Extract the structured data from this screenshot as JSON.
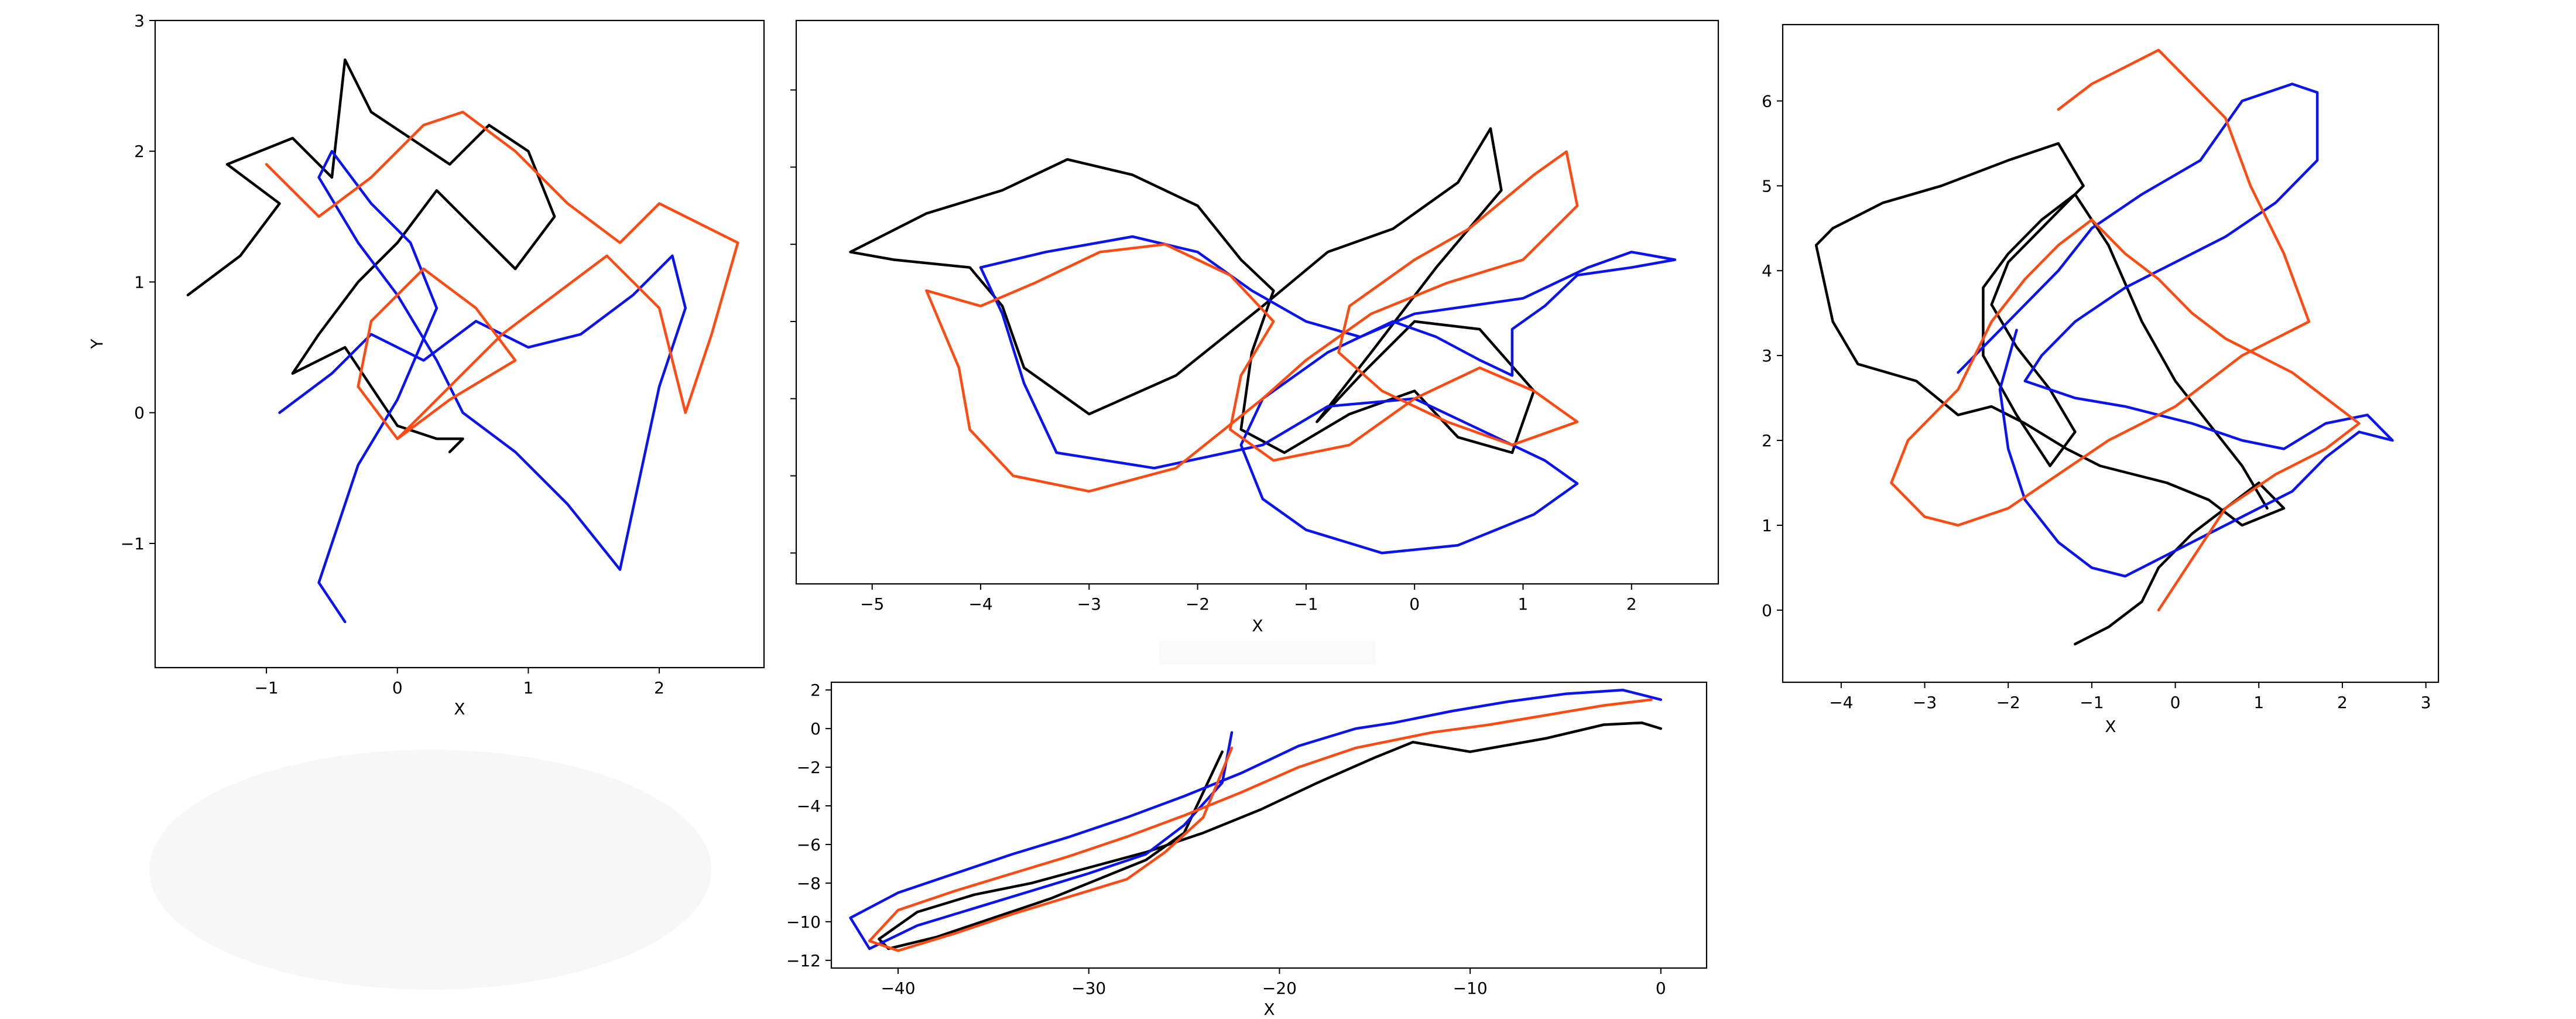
{
  "colors": {
    "black": "#000000",
    "blue": "#0a14f0",
    "orange": "#ff4b12"
  },
  "chart_data": [
    {
      "type": "line",
      "xlabel": "X",
      "ylabel": "Y",
      "xlim": [
        -1.85,
        2.8
      ],
      "ylim": [
        -1.95,
        3.0
      ],
      "xticks": [
        -1,
        0,
        1,
        2
      ],
      "yticks": [
        -1,
        0,
        1,
        2,
        3
      ],
      "series": [
        {
          "color": "#000000",
          "x": [
            -1.6,
            -1.2,
            -0.9,
            -1.3,
            -0.8,
            -0.5,
            -0.4,
            -0.2,
            0.1,
            0.4,
            0.7,
            1.0,
            1.2,
            0.9,
            0.6,
            0.3,
            0.0,
            -0.3,
            -0.6,
            -0.8,
            -0.4,
            -0.2,
            0.0,
            0.3,
            0.5,
            0.4
          ],
          "y": [
            0.9,
            1.2,
            1.6,
            1.9,
            2.1,
            1.8,
            2.7,
            2.3,
            2.1,
            1.9,
            2.2,
            2.0,
            1.5,
            1.1,
            1.4,
            1.7,
            1.3,
            1.0,
            0.6,
            0.3,
            0.5,
            0.2,
            -0.1,
            -0.2,
            -0.2,
            -0.3
          ]
        },
        {
          "color": "#0a14f0",
          "x": [
            -0.9,
            -0.5,
            -0.2,
            0.2,
            0.6,
            1.0,
            1.4,
            1.8,
            2.1,
            2.2,
            2.0,
            1.7,
            1.3,
            0.9,
            0.5,
            0.3,
            0.0,
            -0.3,
            -0.6,
            -0.5,
            -0.2,
            0.1,
            0.3,
            0.0,
            -0.3,
            -0.6,
            -0.4
          ],
          "y": [
            0.0,
            0.3,
            0.6,
            0.4,
            0.7,
            0.5,
            0.6,
            0.9,
            1.2,
            0.8,
            0.2,
            -1.2,
            -0.7,
            -0.3,
            0.0,
            0.4,
            0.9,
            1.3,
            1.8,
            2.0,
            1.6,
            1.3,
            0.8,
            0.1,
            -0.4,
            -1.3,
            -1.6
          ]
        },
        {
          "color": "#ff4b12",
          "x": [
            -1.0,
            -0.6,
            -0.2,
            0.2,
            0.5,
            0.9,
            1.3,
            1.7,
            2.0,
            2.6,
            2.4,
            2.2,
            2.0,
            1.6,
            1.2,
            0.8,
            0.5,
            0.3,
            0.0,
            -0.3,
            -0.2,
            0.2,
            0.6,
            0.9,
            0.4,
            0.0
          ],
          "y": [
            1.9,
            1.5,
            1.8,
            2.2,
            2.3,
            2.0,
            1.6,
            1.3,
            1.6,
            1.3,
            0.6,
            0.0,
            0.8,
            1.2,
            0.9,
            0.6,
            0.3,
            0.1,
            -0.2,
            0.2,
            0.7,
            1.1,
            0.8,
            0.4,
            0.1,
            -0.2
          ]
        }
      ]
    },
    {
      "type": "line",
      "xlabel": "X",
      "xlim": [
        -5.7,
        2.8
      ],
      "ylim": [
        -2.2,
        1.45
      ],
      "xticks": [
        -5,
        -4,
        -3,
        -2,
        -1,
        0,
        1,
        2
      ],
      "series": [
        {
          "color": "#000000",
          "x": [
            -5.2,
            -4.5,
            -3.8,
            -3.2,
            -2.6,
            -2.0,
            -1.6,
            -1.3,
            -1.5,
            -1.6,
            -1.2,
            -0.6,
            0.0,
            0.4,
            0.9,
            1.1,
            0.6,
            0.0,
            -0.5,
            -0.9,
            -0.4,
            0.2,
            0.8,
            0.7,
            0.4,
            -0.2,
            -0.8,
            -1.4,
            -2.2,
            -3.0,
            -3.6,
            -3.8,
            -4.1,
            -4.8,
            -5.2
          ],
          "y": [
            -0.05,
            0.2,
            0.35,
            0.55,
            0.45,
            0.25,
            -0.1,
            -0.3,
            -0.7,
            -1.2,
            -1.35,
            -1.1,
            -0.95,
            -1.25,
            -1.35,
            -0.95,
            -0.55,
            -0.5,
            -0.85,
            -1.15,
            -0.7,
            -0.15,
            0.35,
            0.75,
            0.4,
            0.1,
            -0.05,
            -0.4,
            -0.85,
            -1.1,
            -0.8,
            -0.4,
            -0.15,
            -0.1,
            -0.05
          ]
        },
        {
          "color": "#0a14f0",
          "x": [
            -4.0,
            -3.4,
            -2.6,
            -2.0,
            -1.5,
            -1.0,
            -0.5,
            0.0,
            0.5,
            1.0,
            1.6,
            2.0,
            2.4,
            2.0,
            1.5,
            1.2,
            0.9,
            0.9,
            0.6,
            0.2,
            -0.2,
            -0.8,
            -1.4,
            -1.6,
            -1.4,
            -1.0,
            -0.3,
            0.4,
            1.1,
            1.5,
            1.2,
            0.6,
            0.0,
            -0.8,
            -1.4,
            -2.4,
            -3.3,
            -3.6,
            -3.8,
            -4.0
          ],
          "y": [
            -0.15,
            -0.05,
            0.05,
            -0.05,
            -0.3,
            -0.5,
            -0.6,
            -0.45,
            -0.4,
            -0.35,
            -0.15,
            -0.05,
            -0.1,
            -0.15,
            -0.2,
            -0.4,
            -0.55,
            -0.85,
            -0.75,
            -0.6,
            -0.5,
            -0.7,
            -1.0,
            -1.3,
            -1.65,
            -1.85,
            -2.0,
            -1.95,
            -1.75,
            -1.55,
            -1.4,
            -1.2,
            -1.0,
            -1.05,
            -1.3,
            -1.45,
            -1.35,
            -0.9,
            -0.45,
            -0.15
          ]
        },
        {
          "color": "#ff4b12",
          "x": [
            -4.5,
            -4.0,
            -3.5,
            -2.9,
            -2.3,
            -1.7,
            -1.3,
            -1.6,
            -1.7,
            -1.3,
            -0.6,
            0.0,
            0.6,
            1.1,
            1.5,
            0.9,
            0.3,
            -0.3,
            -0.7,
            -0.6,
            0.0,
            0.5,
            1.1,
            1.4,
            1.5,
            1.0,
            0.3,
            -0.4,
            -1.0,
            -1.4,
            -2.2,
            -3.0,
            -3.7,
            -4.1,
            -4.2,
            -4.5
          ],
          "y": [
            -0.3,
            -0.4,
            -0.25,
            -0.05,
            0.0,
            -0.2,
            -0.5,
            -0.85,
            -1.2,
            -1.4,
            -1.3,
            -1.0,
            -0.8,
            -0.95,
            -1.15,
            -1.3,
            -1.15,
            -0.95,
            -0.7,
            -0.4,
            -0.1,
            0.1,
            0.45,
            0.6,
            0.25,
            -0.1,
            -0.25,
            -0.45,
            -0.75,
            -1.0,
            -1.45,
            -1.6,
            -1.5,
            -1.2,
            -0.8,
            -0.3
          ]
        }
      ]
    },
    {
      "type": "line",
      "xlabel": "X",
      "xlim": [
        -4.7,
        3.15
      ],
      "ylim": [
        -0.85,
        6.9
      ],
      "xticks": [
        -4,
        -3,
        -2,
        -1,
        0,
        1,
        2,
        3
      ],
      "yticks": [
        0,
        1,
        2,
        3,
        4,
        5,
        6
      ],
      "series": [
        {
          "color": "#000000",
          "x": [
            -1.2,
            -0.8,
            -0.4,
            -0.2,
            0.2,
            0.6,
            1.0,
            1.3,
            0.8,
            0.4,
            -0.1,
            -0.5,
            -0.9,
            -1.3,
            -1.8,
            -2.2,
            -2.6,
            -3.1,
            -3.8,
            -4.1,
            -4.3,
            -4.1,
            -3.5,
            -2.8,
            -2.0,
            -1.4,
            -1.1,
            -1.6,
            -2.0,
            -2.2,
            -1.9,
            -1.5,
            -1.2,
            -1.5,
            -1.9,
            -2.3,
            -2.3,
            -2.0,
            -1.6,
            -1.2,
            -0.8,
            -0.4,
            0.0,
            0.4,
            0.8,
            1.1
          ],
          "y": [
            -0.4,
            -0.2,
            0.1,
            0.5,
            0.9,
            1.2,
            1.5,
            1.2,
            1.0,
            1.3,
            1.5,
            1.6,
            1.7,
            1.9,
            2.2,
            2.4,
            2.3,
            2.7,
            2.9,
            3.4,
            4.3,
            4.5,
            4.8,
            5.0,
            5.3,
            5.5,
            5.0,
            4.5,
            4.1,
            3.6,
            3.1,
            2.6,
            2.1,
            1.7,
            2.3,
            3.0,
            3.8,
            4.2,
            4.6,
            4.9,
            4.3,
            3.4,
            2.7,
            2.2,
            1.7,
            1.2
          ]
        },
        {
          "color": "#0a14f0",
          "x": [
            -2.6,
            -2.0,
            -1.4,
            -1.0,
            -0.4,
            0.3,
            0.8,
            1.4,
            1.7,
            1.7,
            1.2,
            0.6,
            0.0,
            -0.6,
            -1.2,
            -1.6,
            -1.8,
            -1.2,
            -0.6,
            0.2,
            0.8,
            1.3,
            1.8,
            2.3,
            2.6,
            2.2,
            1.8,
            1.4,
            1.0,
            0.6,
            0.2,
            -0.2,
            -0.6,
            -1.0,
            -1.4,
            -1.8,
            -2.0,
            -2.1,
            -1.9
          ],
          "y": [
            2.8,
            3.4,
            4.0,
            4.5,
            4.9,
            5.3,
            6.0,
            6.2,
            6.1,
            5.3,
            4.8,
            4.4,
            4.1,
            3.8,
            3.4,
            3.0,
            2.7,
            2.5,
            2.4,
            2.2,
            2.0,
            1.9,
            2.2,
            2.3,
            2.0,
            2.1,
            1.8,
            1.4,
            1.2,
            1.0,
            0.8,
            0.6,
            0.4,
            0.5,
            0.8,
            1.3,
            1.9,
            2.6,
            3.3
          ]
        },
        {
          "color": "#ff4b12",
          "x": [
            -1.4,
            -1.0,
            -0.6,
            -0.2,
            0.2,
            0.6,
            0.9,
            1.3,
            1.6,
            1.2,
            0.8,
            0.4,
            0.0,
            -0.4,
            -0.8,
            -1.4,
            -2.0,
            -2.6,
            -3.0,
            -3.4,
            -3.2,
            -2.6,
            -2.2,
            -1.8,
            -1.4,
            -1.0,
            -0.6,
            -0.2,
            0.2,
            0.6,
            1.0,
            1.4,
            1.8,
            2.2,
            1.8,
            1.2,
            0.6,
            0.2,
            -0.2
          ],
          "y": [
            5.9,
            6.2,
            6.4,
            6.6,
            6.2,
            5.8,
            5.0,
            4.2,
            3.4,
            3.2,
            3.0,
            2.7,
            2.4,
            2.2,
            2.0,
            1.6,
            1.2,
            1.0,
            1.1,
            1.5,
            2.0,
            2.6,
            3.4,
            3.9,
            4.3,
            4.6,
            4.2,
            3.9,
            3.5,
            3.2,
            3.0,
            2.8,
            2.5,
            2.2,
            1.9,
            1.6,
            1.2,
            0.6,
            0.0
          ]
        }
      ]
    },
    {
      "type": "line",
      "xlabel": "X",
      "xlim": [
        -43.5,
        2.4
      ],
      "ylim": [
        -12.4,
        2.4
      ],
      "xticks": [
        -40,
        -30,
        -20,
        -10,
        0
      ],
      "yticks": [
        2,
        0,
        -2,
        -4,
        -6,
        -8,
        -10,
        -12
      ],
      "series": [
        {
          "color": "#000000",
          "x": [
            0.0,
            -1.0,
            -3.0,
            -6.0,
            -10.0,
            -13.0,
            -15.0,
            -18.0,
            -21.0,
            -24.0,
            -27.0,
            -30.0,
            -33.0,
            -36.0,
            -39.0,
            -41.0,
            -40.5,
            -38.0,
            -35.0,
            -32.0,
            -30.0,
            -27.0,
            -25.0,
            -23.0
          ],
          "y": [
            0.0,
            0.3,
            0.2,
            -0.5,
            -1.2,
            -0.7,
            -1.5,
            -2.8,
            -4.2,
            -5.4,
            -6.4,
            -7.2,
            -8.0,
            -8.6,
            -9.5,
            -10.9,
            -11.4,
            -10.8,
            -9.8,
            -8.8,
            -8.0,
            -6.8,
            -5.4,
            -1.2
          ]
        },
        {
          "color": "#0a14f0",
          "x": [
            0.0,
            -2.0,
            -5.0,
            -8.0,
            -11.0,
            -14.0,
            -16.0,
            -19.0,
            -22.0,
            -25.0,
            -28.0,
            -31.0,
            -34.0,
            -37.0,
            -40.0,
            -42.5,
            -41.5,
            -39.0,
            -36.0,
            -33.0,
            -30.0,
            -27.0,
            -25.0,
            -23.0,
            -22.5
          ],
          "y": [
            1.5,
            2.0,
            1.8,
            1.4,
            0.9,
            0.3,
            0.0,
            -0.9,
            -2.3,
            -3.5,
            -4.6,
            -5.6,
            -6.5,
            -7.5,
            -8.5,
            -9.8,
            -11.4,
            -10.2,
            -9.3,
            -8.4,
            -7.5,
            -6.5,
            -5.0,
            -2.8,
            -0.2
          ]
        },
        {
          "color": "#ff4b12",
          "x": [
            -0.5,
            -3.0,
            -6.0,
            -9.0,
            -12.0,
            -14.0,
            -16.0,
            -19.0,
            -22.0,
            -25.0,
            -28.0,
            -31.0,
            -34.0,
            -37.0,
            -40.0,
            -41.5,
            -40.0,
            -37.0,
            -34.0,
            -31.0,
            -28.0,
            -26.0,
            -24.0,
            -22.5
          ],
          "y": [
            1.5,
            1.2,
            0.7,
            0.2,
            -0.2,
            -0.6,
            -1.0,
            -2.0,
            -3.3,
            -4.5,
            -5.6,
            -6.6,
            -7.5,
            -8.4,
            -9.4,
            -11.0,
            -11.5,
            -10.6,
            -9.6,
            -8.7,
            -7.8,
            -6.4,
            -4.6,
            -1.0
          ]
        }
      ]
    }
  ]
}
